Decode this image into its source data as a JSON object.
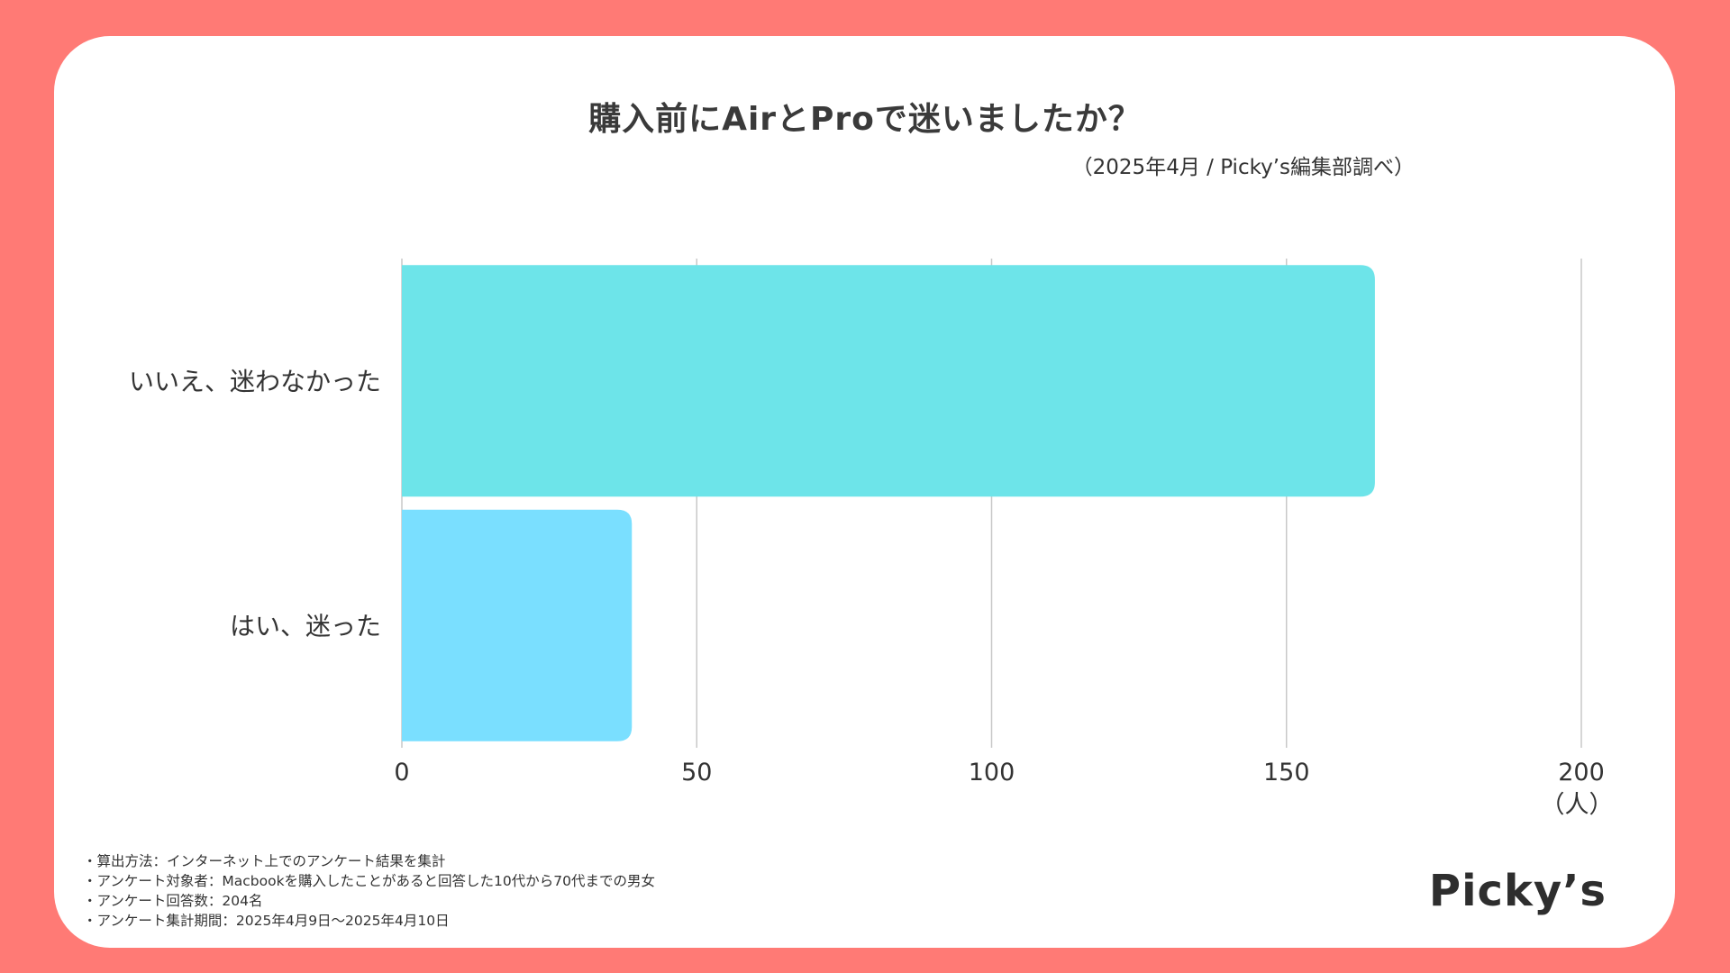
{
  "colors": {
    "background": "#ff7a75",
    "card": "#ffffff",
    "bar_iie": "#6de4e9",
    "bar_hai": "#7adfff",
    "grid": "#c8c8c8"
  },
  "chart_data": {
    "type": "bar",
    "orientation": "horizontal",
    "title": "購入前にAirとProで迷いましたか？",
    "subtitle": "（2025年4月 / Picky’s編集部調べ）",
    "categories": [
      "いいえ、迷わなかった",
      "はい、迷った"
    ],
    "values": [
      165,
      39
    ],
    "xlim": [
      0,
      200
    ],
    "xticks": [
      "0",
      "50",
      "100",
      "150",
      "200"
    ],
    "xtick_values": [
      0,
      50,
      100,
      150,
      200
    ],
    "xlabel": "（人）",
    "grid": "vertical"
  },
  "footnotes": [
    "・算出方法：インターネット上でのアンケート結果を集計",
    "・アンケート対象者：Macbookを購入したことがあると回答した10代から70代までの男女",
    "・アンケート回答数：204名",
    "・アンケート集計期間：2025年4月9日〜2025年4月10日"
  ],
  "logo_text": "Picky’s"
}
